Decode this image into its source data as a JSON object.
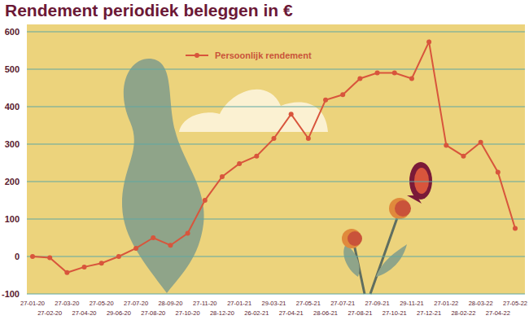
{
  "chart_data": {
    "type": "line",
    "title": "Rendement periodiek beleggen in €",
    "categories": [
      "27-01-20",
      "27-02-20",
      "27-03-20",
      "27-04-20",
      "27-05-20",
      "29-06-20",
      "27-07-20",
      "27-08-20",
      "28-09-20",
      "27-10-20",
      "27-11-20",
      "28-12-20",
      "27-01-21",
      "26-02-21",
      "29-03-21",
      "27-04-21",
      "27-05-21",
      "28-06-21",
      "27-07-21",
      "27-08-21",
      "27-09-21",
      "27-10-21",
      "29-11-21",
      "27-12-21",
      "27-01-22",
      "28-02-22",
      "28-03-22",
      "27-04-22",
      "27-05-22"
    ],
    "series": [
      {
        "name": "Persoonlijk rendement",
        "color": "#d8553c",
        "marker": "circle",
        "values": [
          0,
          -3,
          -43,
          -28,
          -18,
          0,
          22,
          50,
          30,
          62,
          150,
          213,
          248,
          268,
          315,
          380,
          315,
          418,
          432,
          475,
          490,
          490,
          475,
          573,
          297,
          268,
          305,
          225,
          75
        ]
      }
    ],
    "ylim": [
      -100,
      600
    ],
    "yticks": [
      -100,
      0,
      100,
      200,
      300,
      400,
      500,
      600
    ],
    "grid": true,
    "legend": "top"
  }
}
